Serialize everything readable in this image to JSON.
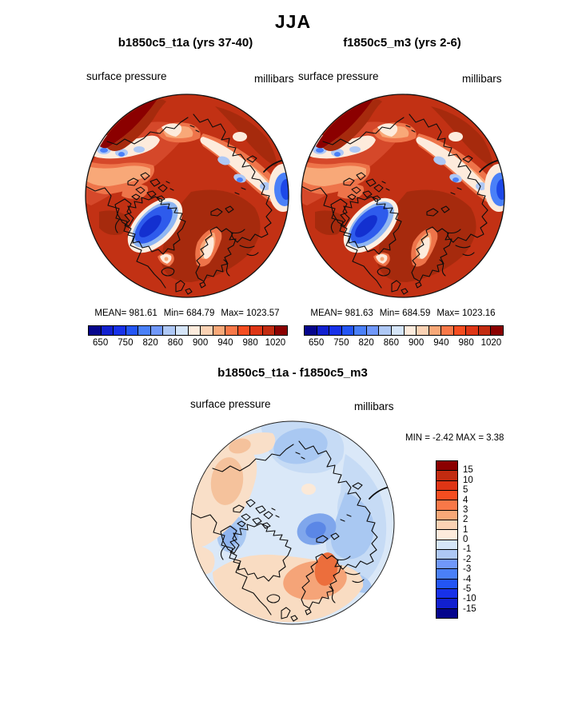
{
  "title": "JJA",
  "panels": [
    {
      "title": "b1850c5_t1a (yrs 37-40)",
      "field_label": "surface pressure",
      "units_label": "millibars",
      "stats": {
        "mean": "MEAN= 981.61",
        "min": "Min= 684.79",
        "max": "Max= 1023.57"
      }
    },
    {
      "title": "f1850c5_m3 (yrs 2-6)",
      "field_label": "surface pressure",
      "units_label": "millibars",
      "stats": {
        "mean": "MEAN= 981.63",
        "min": "Min= 684.59",
        "max": "Max= 1023.16"
      }
    }
  ],
  "pressure_colorbar": {
    "tick_labels": [
      "650",
      "750",
      "820",
      "860",
      "900",
      "940",
      "980",
      "1020"
    ],
    "colors": [
      "#05058C",
      "#1120CF",
      "#1731E9",
      "#2355F5",
      "#4A80F8",
      "#7098FA",
      "#AEC8F5",
      "#D5E5F8",
      "#FDEBDC",
      "#FBD2B4",
      "#F8A878",
      "#F87848",
      "#F54D20",
      "#DE3515",
      "#C22B10",
      "#8B0000"
    ]
  },
  "diff": {
    "title": "b1850c5_t1a - f1850c5_m3",
    "field_label": "surface pressure",
    "units_label": "millibars",
    "min_label": "MIN =",
    "min_value": "-2.42",
    "max_label": "MAX =",
    "max_value": "3.38",
    "colorbar": {
      "labels": [
        "15",
        "10",
        "5",
        "4",
        "3",
        "2",
        "1",
        "0",
        "-1",
        "-2",
        "-3",
        "-4",
        "-5",
        "-10",
        "-15"
      ],
      "colors": [
        "#8B0000",
        "#C22B10",
        "#DE3515",
        "#F54D20",
        "#F87848",
        "#F8A878",
        "#FBD2B4",
        "#FDEBDC",
        "#D5E5F8",
        "#AEC8F5",
        "#7098FA",
        "#4A80F8",
        "#2355F5",
        "#1731E9",
        "#1120CF",
        "#05058C"
      ]
    }
  },
  "chart_data": [
    {
      "type": "heatmap",
      "subtype": "polar-stereographic-contour-map",
      "season": "JJA",
      "title": "b1850c5_t1a (yrs 37-40)",
      "variable": "surface pressure",
      "units": "millibars",
      "stats": {
        "mean": 981.61,
        "min": 684.79,
        "max": 1023.57
      },
      "colorbar_tick_values": [
        650,
        750,
        820,
        860,
        900,
        940,
        980,
        1020
      ],
      "legend_position": "bottom"
    },
    {
      "type": "heatmap",
      "subtype": "polar-stereographic-contour-map",
      "season": "JJA",
      "title": "f1850c5_m3 (yrs 2-6)",
      "variable": "surface pressure",
      "units": "millibars",
      "stats": {
        "mean": 981.63,
        "min": 684.59,
        "max": 1023.16
      },
      "colorbar_tick_values": [
        650,
        750,
        820,
        860,
        900,
        940,
        980,
        1020
      ],
      "legend_position": "bottom"
    },
    {
      "type": "heatmap",
      "subtype": "polar-stereographic-contour-map",
      "title": "b1850c5_t1a - f1850c5_m3",
      "variable": "surface pressure",
      "units": "millibars",
      "stats": {
        "min": -2.42,
        "max": 3.38
      },
      "colorbar_tick_values": [
        15,
        10,
        5,
        4,
        3,
        2,
        1,
        0,
        -1,
        -2,
        -3,
        -4,
        -5,
        -10,
        -15
      ],
      "legend_position": "right"
    }
  ]
}
